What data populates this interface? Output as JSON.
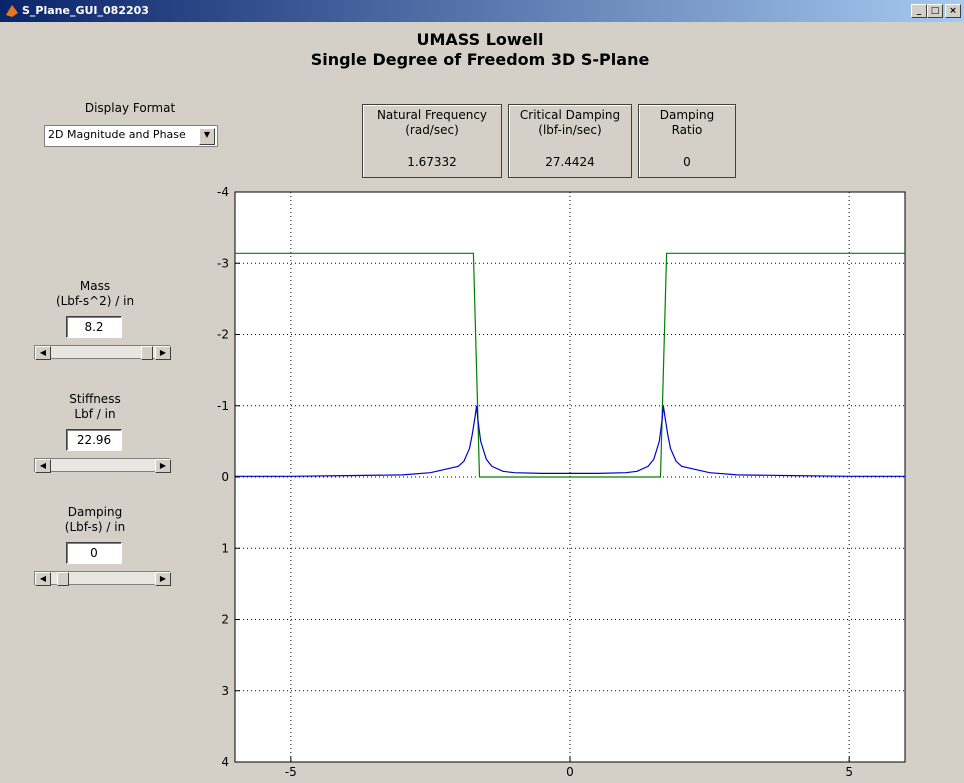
{
  "window": {
    "title": "S_Plane_GUI_082203"
  },
  "header": {
    "title": "UMASS Lowell",
    "subtitle": "Single Degree of Freedom 3D S-Plane"
  },
  "display_format": {
    "label": "Display Format",
    "selected": "2D Magnitude and Phase"
  },
  "readouts": [
    {
      "label": [
        "Natural Frequency",
        "(rad/sec)"
      ],
      "value": "1.67332"
    },
    {
      "label": [
        "Critical Damping",
        "(lbf-in/sec)"
      ],
      "value": "27.4424"
    },
    {
      "label": [
        "Damping",
        "Ratio"
      ],
      "value": "0"
    }
  ],
  "controls": [
    {
      "label": [
        "Mass",
        "(Lbf-s^2) / in"
      ],
      "value": "8.2"
    },
    {
      "label": [
        "Stiffness",
        "Lbf / in"
      ],
      "value": "22.96"
    },
    {
      "label": [
        "Damping",
        "(Lbf-s) / in"
      ],
      "value": "0"
    }
  ],
  "chart_data": {
    "type": "line",
    "xlim": [
      -6,
      6
    ],
    "xticks": [
      -5,
      0,
      5
    ],
    "ylim": [
      -4,
      4
    ],
    "yticks": [
      -4,
      -3,
      -2,
      -1,
      0,
      1,
      2,
      3,
      4
    ],
    "y_reversed": true,
    "grid": true,
    "series": [
      {
        "color": "#008000",
        "x": [
          -6,
          -1.73,
          -1.62,
          1.62,
          1.73,
          6
        ],
        "values": [
          -3.14,
          -3.14,
          0,
          0,
          -3.14,
          -3.14
        ]
      },
      {
        "color": "#0000cc",
        "x": [
          -6,
          -5,
          -4,
          -3,
          -2.5,
          -2,
          -1.9,
          -1.8,
          -1.75,
          -1.7,
          -1.673,
          -1.65,
          -1.6,
          -1.5,
          -1.4,
          -1.2,
          -1,
          -0.5,
          0,
          0.5,
          1,
          1.2,
          1.4,
          1.5,
          1.6,
          1.65,
          1.673,
          1.7,
          1.75,
          1.8,
          1.9,
          2,
          2.5,
          3,
          4,
          5,
          6
        ],
        "values": [
          -0.01,
          -0.01,
          -0.02,
          -0.03,
          -0.06,
          -0.15,
          -0.22,
          -0.4,
          -0.6,
          -0.85,
          -1,
          -0.8,
          -0.5,
          -0.25,
          -0.15,
          -0.08,
          -0.06,
          -0.05,
          -0.05,
          -0.05,
          -0.06,
          -0.08,
          -0.15,
          -0.25,
          -0.5,
          -0.8,
          -1,
          -0.85,
          -0.6,
          -0.4,
          -0.22,
          -0.15,
          -0.06,
          -0.03,
          -0.02,
          -0.01,
          -0.01
        ]
      }
    ]
  }
}
